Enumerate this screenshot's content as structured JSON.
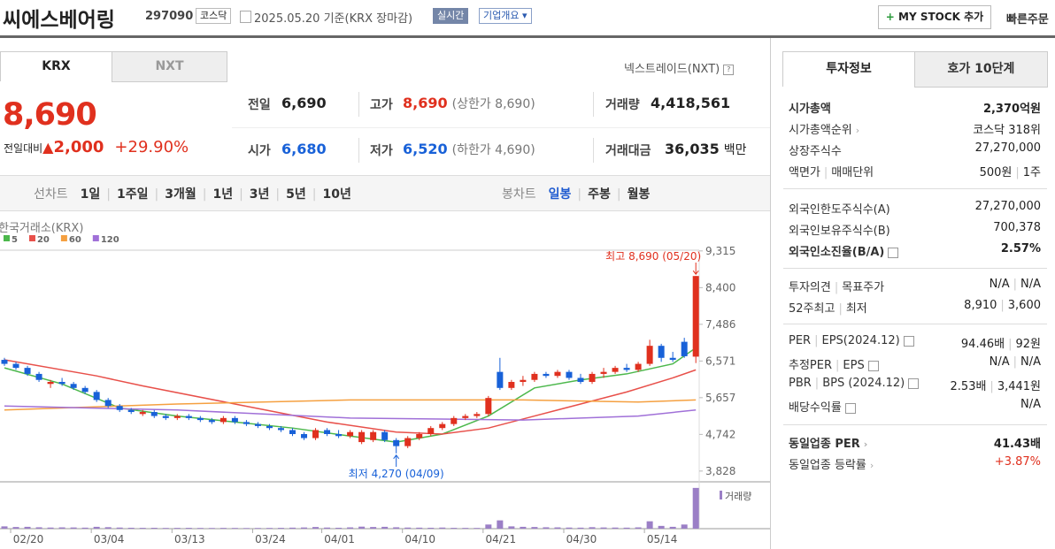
{
  "header": {
    "name": "씨에스베어링",
    "code": "297090",
    "market": "코스닥",
    "date": "2025.05.20",
    "basis": "기준(KRX 장마감)",
    "realtime": "실시간",
    "company": "기업개요",
    "my_stock": "MY STOCK 추가",
    "quick_order": "빠른주문"
  },
  "tabs": [
    "KRX",
    "NXT"
  ],
  "nxt_link": "넥스트레이드(NXT)",
  "quote": {
    "price": "8,690",
    "change_label": "전일대비",
    "change": "2,000",
    "rate": "+29.90%"
  },
  "stats": [
    {
      "label": "전일",
      "value": "6,690",
      "color": "#222"
    },
    {
      "label": "고가",
      "value": "8,690",
      "note": "(상한가 8,690)",
      "color": "#e0301e"
    },
    {
      "label": "거래량",
      "value": "4,418,561",
      "color": "#222"
    },
    {
      "label": "시가",
      "value": "6,680",
      "color": "#1861d8"
    },
    {
      "label": "저가",
      "value": "6,520",
      "note": "(하한가 4,690)",
      "color": "#1861d8"
    },
    {
      "label": "거래대금",
      "value": "36,035",
      "note": "백만",
      "color": "#222"
    }
  ],
  "toolbar": {
    "line_chart": "선차트",
    "periods": [
      "1일",
      "1주일",
      "3개월",
      "1년",
      "3년",
      "5년",
      "10년"
    ],
    "candle_chart": "봉차트",
    "candle_periods": [
      "일봉",
      "주봉",
      "월봉"
    ]
  },
  "chart": {
    "type": "candlestick",
    "source": "한국거래소(KRX)",
    "ylim": [
      3560,
      9620
    ],
    "yticks": [
      {
        "value": 9315,
        "label": "9,315"
      },
      {
        "value": 8400,
        "label": "8,400"
      },
      {
        "value": 7486,
        "label": "7,486"
      },
      {
        "value": 6571,
        "label": "6,571"
      },
      {
        "value": 5657,
        "label": "5,657"
      },
      {
        "value": 4742,
        "label": "4,742"
      },
      {
        "value": 3828,
        "label": "3,828"
      }
    ],
    "categories": [
      null,
      "02/20",
      null,
      null,
      null,
      null,
      null,
      null,
      "03/04",
      null,
      null,
      null,
      null,
      null,
      null,
      "03/13",
      null,
      null,
      null,
      null,
      null,
      null,
      "03/24",
      null,
      null,
      null,
      null,
      null,
      "04/01",
      null,
      null,
      null,
      null,
      null,
      null,
      "04/10",
      null,
      null,
      null,
      null,
      null,
      null,
      "04/21",
      null,
      null,
      null,
      null,
      null,
      null,
      "04/30",
      null,
      null,
      null,
      null,
      null,
      null,
      "05/14",
      null,
      null,
      null,
      null
    ],
    "candles": {
      "open": [
        6600,
        6500,
        6400,
        6250,
        6000,
        6050,
        6000,
        5900,
        5800,
        5600,
        5450,
        5350,
        5250,
        5300,
        5200,
        5150,
        5200,
        5150,
        5100,
        5050,
        5150,
        5050,
        5000,
        4950,
        4900,
        4850,
        4750,
        4650,
        4850,
        4750,
        4700,
        4550,
        4600,
        4800,
        4600,
        4450,
        4650,
        4750,
        4900,
        5000,
        5150,
        5200,
        5250,
        6300,
        5900,
        6050,
        6100,
        6250,
        6200,
        6300,
        6150,
        6050,
        6250,
        6300,
        6400,
        6350,
        6500,
        6950,
        6650,
        7050,
        6680
      ],
      "high": [
        6650,
        6550,
        6450,
        6300,
        6100,
        6150,
        6050,
        5950,
        5850,
        5650,
        5500,
        5400,
        5350,
        5350,
        5250,
        5250,
        5250,
        5200,
        5150,
        5200,
        5200,
        5100,
        5050,
        5000,
        4950,
        4900,
        4800,
        4900,
        4900,
        4850,
        4850,
        4850,
        4850,
        4850,
        4650,
        4700,
        4800,
        4950,
        5050,
        5200,
        5250,
        5300,
        5700,
        6650,
        6100,
        6200,
        6300,
        6300,
        6350,
        6350,
        6250,
        6300,
        6400,
        6450,
        6500,
        6550,
        7100,
        7000,
        6800,
        7150,
        8690
      ],
      "low": [
        6450,
        6350,
        6200,
        6050,
        5900,
        5950,
        5850,
        5750,
        5550,
        5400,
        5300,
        5250,
        5200,
        5150,
        5100,
        5100,
        5100,
        5050,
        5000,
        5000,
        5000,
        4950,
        4900,
        4850,
        4800,
        4700,
        4600,
        4600,
        4700,
        4650,
        4650,
        4500,
        4550,
        4550,
        4270,
        4400,
        4600,
        4700,
        4850,
        4950,
        5100,
        5150,
        5200,
        5850,
        5850,
        5950,
        6050,
        6150,
        6150,
        6100,
        6000,
        6000,
        6150,
        6250,
        6300,
        6300,
        6450,
        6550,
        6550,
        6650,
        6520
      ],
      "close": [
        6500,
        6400,
        6250,
        6100,
        6050,
        6000,
        5900,
        5800,
        5600,
        5450,
        5350,
        5300,
        5300,
        5200,
        5150,
        5200,
        5150,
        5100,
        5050,
        5150,
        5050,
        5000,
        4950,
        4900,
        4850,
        4750,
        4650,
        4850,
        4750,
        4700,
        4800,
        4800,
        4800,
        4600,
        4450,
        4650,
        4750,
        4900,
        5000,
        5150,
        5200,
        5250,
        5650,
        5900,
        6050,
        6100,
        6250,
        6200,
        6300,
        6150,
        6050,
        6250,
        6300,
        6400,
        6350,
        6500,
        6950,
        6650,
        6600,
        6690,
        8690
      ]
    },
    "up_color": "#e0301e",
    "down_color": "#1861d8",
    "ma": [
      {
        "name": "5",
        "color": "#4cb84c",
        "x": [
          0,
          5,
          10,
          15,
          20,
          25,
          30,
          34,
          38,
          42,
          46,
          50,
          54,
          58,
          60
        ],
        "values": [
          6400,
          6000,
          5400,
          5200,
          5050,
          4900,
          4700,
          4550,
          4750,
          5200,
          5900,
          6100,
          6250,
          6500,
          6900
        ]
      },
      {
        "name": "20",
        "color": "#e8504a",
        "x": [
          0,
          8,
          12,
          20,
          28,
          34,
          38,
          42,
          46,
          50,
          54,
          58,
          60
        ],
        "values": [
          6600,
          6200,
          5950,
          5500,
          5050,
          4800,
          4750,
          4900,
          5200,
          5500,
          5800,
          6150,
          6350
        ]
      },
      {
        "name": "60",
        "color": "#f5a040",
        "x": [
          0,
          15,
          30,
          45,
          55,
          60
        ],
        "values": [
          5350,
          5500,
          5600,
          5600,
          5550,
          5600
        ]
      },
      {
        "name": "120",
        "color": "#a070d8",
        "x": [
          0,
          15,
          30,
          45,
          55,
          60
        ],
        "values": [
          5450,
          5350,
          5150,
          5100,
          5200,
          5350
        ]
      }
    ],
    "high_annotation": "최고 8,690 (05/20)",
    "low_annotation": "최저 4,270 (04/09)",
    "volume_label": "거래량",
    "volume_color": "#9b7fc6",
    "volume_ylim": [
      0,
      4600000
    ],
    "volumes": [
      250000,
      180000,
      200000,
      150000,
      120000,
      140000,
      130000,
      110000,
      200000,
      160000,
      120000,
      100000,
      90000,
      95000,
      80000,
      85000,
      90000,
      80000,
      75000,
      85000,
      80000,
      70000,
      75000,
      80000,
      90000,
      110000,
      130000,
      180000,
      120000,
      100000,
      140000,
      220000,
      180000,
      200000,
      150000,
      120000,
      110000,
      100000,
      120000,
      90000,
      85000,
      80000,
      450000,
      900000,
      250000,
      200000,
      180000,
      150000,
      140000,
      120000,
      110000,
      160000,
      130000,
      120000,
      110000,
      140000,
      800000,
      300000,
      200000,
      450000,
      4418561
    ]
  },
  "side": {
    "tabs": [
      "투자정보",
      "호가 10단계"
    ],
    "groups": [
      [
        {
          "label": [
            "시가총액"
          ],
          "value": [
            "2,370억원"
          ],
          "bold": true
        },
        {
          "label": [
            "시가총액순위"
          ],
          "arrow": true,
          "value": [
            "코스닥 318위"
          ]
        },
        {
          "label": [
            "상장주식수"
          ],
          "value": [
            "27,270,000"
          ]
        },
        {
          "label": [
            "액면가",
            "매매단위"
          ],
          "value": [
            "500원",
            "1주"
          ]
        }
      ],
      [
        {
          "label": [
            "외국인한도주식수(A)"
          ],
          "value": [
            "27,270,000"
          ]
        },
        {
          "label": [
            "외국인보유주식수(B)"
          ],
          "value": [
            "700,378"
          ]
        },
        {
          "label": [
            "외국인소진율(B/A)"
          ],
          "help": true,
          "value": [
            "2.57%"
          ],
          "bold": true
        }
      ],
      [
        {
          "label": [
            "투자의견",
            "목표주가"
          ],
          "value": [
            "N/A",
            "N/A"
          ]
        },
        {
          "label": [
            "52주최고",
            "최저"
          ],
          "value": [
            "8,910",
            "3,600"
          ]
        }
      ],
      [
        {
          "label": [
            "PER",
            "EPS(2024.12)"
          ],
          "help": true,
          "value": [
            "94.46배",
            "92원"
          ]
        },
        {
          "label": [
            "추정PER",
            "EPS"
          ],
          "help": true,
          "value": [
            "N/A",
            "N/A"
          ]
        },
        {
          "label": [
            "PBR",
            "BPS (2024.12)"
          ],
          "help": true,
          "value": [
            "2.53배",
            "3,441원"
          ]
        },
        {
          "label": [
            "배당수익률"
          ],
          "help": true,
          "value": [
            "N/A"
          ]
        }
      ],
      [
        {
          "label": [
            "동일업종 PER"
          ],
          "arrow": true,
          "value": [
            "41.43배"
          ],
          "bold": true
        },
        {
          "label": [
            "동일업종 등락률"
          ],
          "arrow": true,
          "value": [
            "+3.87%"
          ],
          "color": "#e0301e"
        }
      ]
    ]
  }
}
